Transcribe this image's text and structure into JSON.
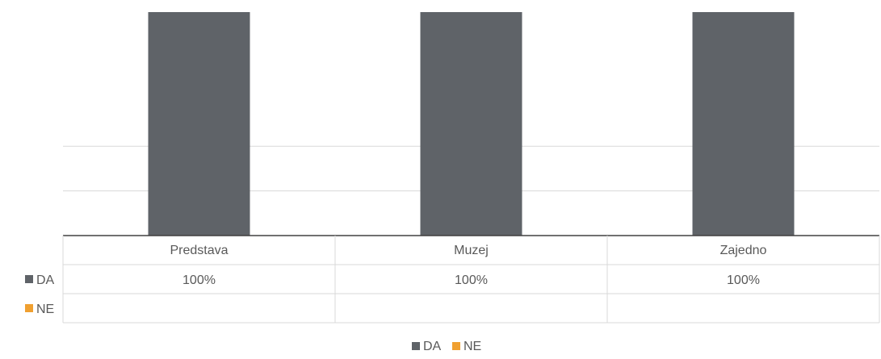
{
  "chart_data": {
    "type": "bar",
    "categories": [
      "Predstava",
      "Muzej",
      "Zajedno"
    ],
    "series": [
      {
        "name": "DA",
        "values": [
          100,
          100,
          100
        ],
        "labels": [
          "100%",
          "100%",
          "100%"
        ],
        "color": "#5f6368"
      },
      {
        "name": "NE",
        "values": [
          0,
          0,
          0
        ],
        "labels": [
          "",
          "",
          ""
        ],
        "color": "#f0a030"
      }
    ],
    "ylim": [
      0,
      100
    ],
    "grid": true,
    "data_table": true,
    "legend_position": "bottom"
  }
}
